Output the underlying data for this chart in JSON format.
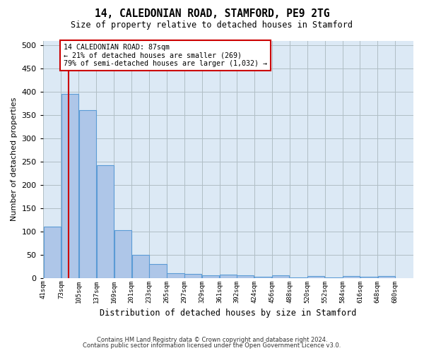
{
  "title": "14, CALEDONIAN ROAD, STAMFORD, PE9 2TG",
  "subtitle": "Size of property relative to detached houses in Stamford",
  "xlabel": "Distribution of detached houses by size in Stamford",
  "ylabel": "Number of detached properties",
  "bin_labels": [
    "41sqm",
    "73sqm",
    "105sqm",
    "137sqm",
    "169sqm",
    "201sqm",
    "233sqm",
    "265sqm",
    "297sqm",
    "329sqm",
    "361sqm",
    "392sqm",
    "424sqm",
    "456sqm",
    "488sqm",
    "520sqm",
    "552sqm",
    "584sqm",
    "616sqm",
    "648sqm",
    "680sqm"
  ],
  "bin_left_edges": [
    41,
    73,
    105,
    137,
    169,
    201,
    233,
    265,
    297,
    329,
    361,
    392,
    424,
    456,
    488,
    520,
    552,
    584,
    616,
    648,
    680
  ],
  "bar_heights": [
    110,
    395,
    360,
    242,
    103,
    50,
    30,
    10,
    8,
    6,
    7,
    6,
    2,
    5,
    1,
    4,
    1,
    4,
    2,
    4
  ],
  "bar_color": "#aec6e8",
  "bar_edge_color": "#5b9bd5",
  "property_size": 87,
  "vline_color": "#cc0000",
  "annotation_text": "14 CALEDONIAN ROAD: 87sqm\n← 21% of detached houses are smaller (269)\n79% of semi-detached houses are larger (1,032) →",
  "annotation_box_color": "#ffffff",
  "annotation_box_edge": "#cc0000",
  "ylim": [
    0,
    510
  ],
  "yticks": [
    0,
    50,
    100,
    150,
    200,
    250,
    300,
    350,
    400,
    450,
    500
  ],
  "bg_color": "#ffffff",
  "plot_bg_color": "#dce9f5",
  "grid_color": "#b0bec5",
  "footer_line1": "Contains HM Land Registry data © Crown copyright and database right 2024.",
  "footer_line2": "Contains public sector information licensed under the Open Government Licence v3.0."
}
